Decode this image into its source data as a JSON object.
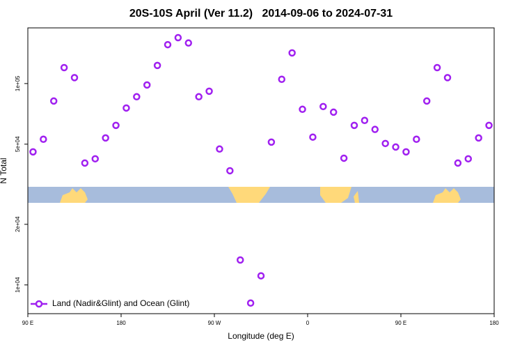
{
  "chart_data": {
    "type": "scatter",
    "title": "20S-10S April (Ver 11.2)   2014-09-06 to 2024-07-31",
    "x_label": "Longitude (deg E)",
    "y_label": "N Total",
    "yscale": "log",
    "xlim": [
      90,
      540
    ],
    "ylim": [
      7200,
      189000
    ],
    "xticks": [
      {
        "value": 90,
        "label": "90 E"
      },
      180,
      {
        "value": 270,
        "label": "90 W"
      },
      {
        "value": 360,
        "label": "0"
      },
      {
        "value": 450,
        "label": "90 E"
      },
      {
        "value": 540,
        "label": "180"
      }
    ],
    "yticks": [
      {
        "value": 10000,
        "label": "1e+04"
      },
      {
        "value": 20000,
        "label": "2e+04"
      },
      {
        "value": 50000,
        "label": "5e+04"
      },
      {
        "value": 100000,
        "label": "1e+05"
      }
    ],
    "legend": "bottom-left",
    "series": [
      {
        "name": "Land (Nadir&Glint) and Ocean (Glint)",
        "color": "#a020f0",
        "x": [
          95,
          105,
          115,
          125,
          135,
          145,
          155,
          165,
          175,
          185,
          195,
          205,
          215,
          225,
          235,
          245,
          255,
          265,
          275,
          285,
          295,
          305,
          315,
          325,
          335,
          345,
          355,
          365,
          375,
          385,
          395,
          405,
          415,
          425,
          435,
          445,
          455,
          465,
          475,
          485,
          495,
          505,
          515,
          525,
          535
        ],
        "values": [
          45800,
          52900,
          81900,
          120000,
          107000,
          40300,
          42300,
          53700,
          62000,
          75600,
          86000,
          98400,
          123000,
          156000,
          169000,
          159000,
          86000,
          91600,
          47300,
          36900,
          13300,
          8130,
          11100,
          51200,
          105000,
          142000,
          74500,
          54200,
          76900,
          72100,
          42600,
          62000,
          65600,
          59200,
          50400,
          48400,
          45800,
          52900,
          81900,
          120000,
          107000,
          40300,
          42300,
          53700,
          62000
        ]
      }
    ]
  }
}
